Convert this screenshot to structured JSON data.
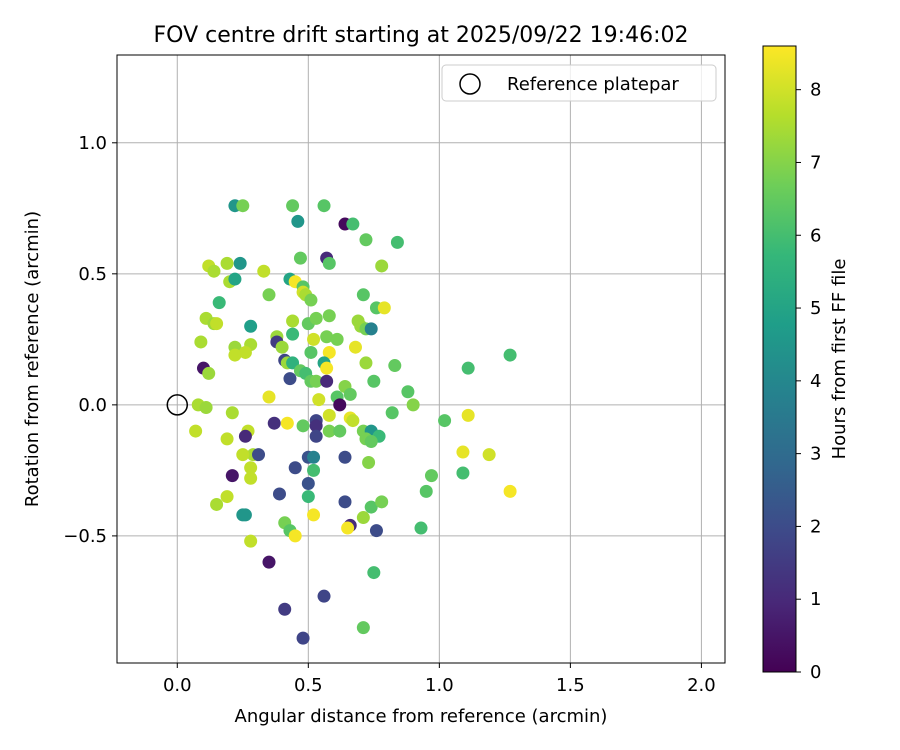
{
  "chart_data": {
    "type": "scatter",
    "title": "FOV centre drift starting at 2025/09/22 19:46:02",
    "xlabel": "Angular distance from reference (arcmin)",
    "ylabel": "Rotation from reference (arcmin)",
    "xlim": [
      -0.23,
      2.09
    ],
    "ylim": [
      -0.985,
      1.335
    ],
    "xticks": [
      0.0,
      0.5,
      1.0,
      1.5,
      2.0
    ],
    "xtick_labels": [
      "0.0",
      "0.5",
      "1.0",
      "1.5",
      "2.0"
    ],
    "yticks": [
      -0.5,
      0.0,
      0.5,
      1.0
    ],
    "ytick_labels": [
      "−0.5",
      "0.0",
      "0.5",
      "1.0"
    ],
    "grid": true,
    "legend": {
      "position": "upper-right",
      "label": "Reference platepar"
    },
    "reference_point": {
      "x": 0.0,
      "y": 0.0
    },
    "colorbar": {
      "label": "Hours from first FF file",
      "min": 0,
      "max": 8.6,
      "colormap": "viridis",
      "ticks": [
        0,
        1,
        2,
        3,
        4,
        5,
        6,
        7,
        8
      ],
      "tick_labels": [
        "0",
        "1",
        "2",
        "3",
        "4",
        "5",
        "6",
        "7",
        "8"
      ]
    },
    "points": [
      {
        "x": 0.22,
        "y": 0.76,
        "h": 4.5
      },
      {
        "x": 0.25,
        "y": 0.76,
        "h": 6.8
      },
      {
        "x": 0.44,
        "y": 0.76,
        "h": 6.5
      },
      {
        "x": 0.56,
        "y": 0.76,
        "h": 6.3
      },
      {
        "x": 0.64,
        "y": 0.69,
        "h": 0.2
      },
      {
        "x": 0.67,
        "y": 0.69,
        "h": 6.0
      },
      {
        "x": 0.46,
        "y": 0.7,
        "h": 4.5
      },
      {
        "x": 0.72,
        "y": 0.63,
        "h": 6.5
      },
      {
        "x": 0.84,
        "y": 0.62,
        "h": 6.0
      },
      {
        "x": 0.57,
        "y": 0.56,
        "h": 1.0
      },
      {
        "x": 0.58,
        "y": 0.54,
        "h": 6.3
      },
      {
        "x": 0.47,
        "y": 0.56,
        "h": 6.5
      },
      {
        "x": 0.78,
        "y": 0.53,
        "h": 7.3
      },
      {
        "x": 0.12,
        "y": 0.53,
        "h": 7.8
      },
      {
        "x": 0.14,
        "y": 0.51,
        "h": 7.5
      },
      {
        "x": 0.19,
        "y": 0.54,
        "h": 7.5
      },
      {
        "x": 0.24,
        "y": 0.54,
        "h": 4.5
      },
      {
        "x": 0.33,
        "y": 0.51,
        "h": 7.8
      },
      {
        "x": 0.2,
        "y": 0.47,
        "h": 7.5
      },
      {
        "x": 0.22,
        "y": 0.48,
        "h": 5.0
      },
      {
        "x": 0.43,
        "y": 0.48,
        "h": 5.0
      },
      {
        "x": 0.45,
        "y": 0.47,
        "h": 8.5
      },
      {
        "x": 0.48,
        "y": 0.45,
        "h": 6.3
      },
      {
        "x": 0.48,
        "y": 0.43,
        "h": 8.0
      },
      {
        "x": 0.49,
        "y": 0.42,
        "h": 7.5
      },
      {
        "x": 0.71,
        "y": 0.42,
        "h": 6.3
      },
      {
        "x": 0.35,
        "y": 0.42,
        "h": 6.8
      },
      {
        "x": 0.51,
        "y": 0.4,
        "h": 6.8
      },
      {
        "x": 0.16,
        "y": 0.39,
        "h": 5.8
      },
      {
        "x": 0.76,
        "y": 0.37,
        "h": 6.3
      },
      {
        "x": 0.79,
        "y": 0.37,
        "h": 8.3
      },
      {
        "x": 0.11,
        "y": 0.33,
        "h": 7.5
      },
      {
        "x": 0.14,
        "y": 0.31,
        "h": 7.3
      },
      {
        "x": 0.15,
        "y": 0.31,
        "h": 7.8
      },
      {
        "x": 0.28,
        "y": 0.3,
        "h": 4.8
      },
      {
        "x": 0.44,
        "y": 0.32,
        "h": 7.5
      },
      {
        "x": 0.5,
        "y": 0.31,
        "h": 6.5
      },
      {
        "x": 0.53,
        "y": 0.33,
        "h": 6.8
      },
      {
        "x": 0.58,
        "y": 0.34,
        "h": 6.8
      },
      {
        "x": 0.69,
        "y": 0.32,
        "h": 7.3
      },
      {
        "x": 0.7,
        "y": 0.3,
        "h": 7.3
      },
      {
        "x": 0.72,
        "y": 0.29,
        "h": 6.8
      },
      {
        "x": 0.74,
        "y": 0.29,
        "h": 3.8
      },
      {
        "x": 0.44,
        "y": 0.27,
        "h": 5.8
      },
      {
        "x": 0.38,
        "y": 0.26,
        "h": 7.3
      },
      {
        "x": 0.57,
        "y": 0.26,
        "h": 6.8
      },
      {
        "x": 0.61,
        "y": 0.25,
        "h": 6.8
      },
      {
        "x": 0.52,
        "y": 0.25,
        "h": 8.0
      },
      {
        "x": 0.09,
        "y": 0.24,
        "h": 7.5
      },
      {
        "x": 0.28,
        "y": 0.23,
        "h": 7.5
      },
      {
        "x": 0.38,
        "y": 0.24,
        "h": 1.5
      },
      {
        "x": 0.4,
        "y": 0.22,
        "h": 7.3
      },
      {
        "x": 0.22,
        "y": 0.22,
        "h": 7.3
      },
      {
        "x": 0.68,
        "y": 0.22,
        "h": 8.3
      },
      {
        "x": 0.26,
        "y": 0.2,
        "h": 7.8
      },
      {
        "x": 0.22,
        "y": 0.19,
        "h": 7.8
      },
      {
        "x": 0.51,
        "y": 0.2,
        "h": 6.3
      },
      {
        "x": 0.58,
        "y": 0.2,
        "h": 8.5
      },
      {
        "x": 1.27,
        "y": 0.19,
        "h": 6.0
      },
      {
        "x": 0.41,
        "y": 0.17,
        "h": 1.8
      },
      {
        "x": 0.42,
        "y": 0.16,
        "h": 7.3
      },
      {
        "x": 0.44,
        "y": 0.16,
        "h": 5.5
      },
      {
        "x": 0.56,
        "y": 0.16,
        "h": 5.0
      },
      {
        "x": 0.57,
        "y": 0.14,
        "h": 8.5
      },
      {
        "x": 0.72,
        "y": 0.16,
        "h": 7.3
      },
      {
        "x": 0.83,
        "y": 0.15,
        "h": 6.5
      },
      {
        "x": 1.11,
        "y": 0.14,
        "h": 6.0
      },
      {
        "x": 0.1,
        "y": 0.14,
        "h": 0.5
      },
      {
        "x": 0.12,
        "y": 0.12,
        "h": 7.3
      },
      {
        "x": 0.47,
        "y": 0.13,
        "h": 6.5
      },
      {
        "x": 0.49,
        "y": 0.12,
        "h": 6.0
      },
      {
        "x": 0.43,
        "y": 0.1,
        "h": 2.0
      },
      {
        "x": 0.51,
        "y": 0.09,
        "h": 6.5
      },
      {
        "x": 0.53,
        "y": 0.09,
        "h": 6.8
      },
      {
        "x": 0.57,
        "y": 0.09,
        "h": 1.0
      },
      {
        "x": 0.75,
        "y": 0.09,
        "h": 6.3
      },
      {
        "x": 0.64,
        "y": 0.07,
        "h": 7.0
      },
      {
        "x": 0.66,
        "y": 0.04,
        "h": 6.5
      },
      {
        "x": 0.88,
        "y": 0.05,
        "h": 6.3
      },
      {
        "x": 0.61,
        "y": 0.03,
        "h": 6.3
      },
      {
        "x": 0.35,
        "y": 0.03,
        "h": 8.3
      },
      {
        "x": 0.54,
        "y": 0.02,
        "h": 8.0
      },
      {
        "x": 0.62,
        "y": 0.0,
        "h": 0.2
      },
      {
        "x": 0.9,
        "y": 0.0,
        "h": 7.0
      },
      {
        "x": 0.08,
        "y": 0.0,
        "h": 7.5
      },
      {
        "x": 0.11,
        "y": -0.01,
        "h": 7.3
      },
      {
        "x": 0.21,
        "y": -0.03,
        "h": 7.5
      },
      {
        "x": 0.82,
        "y": -0.03,
        "h": 6.3
      },
      {
        "x": 0.58,
        "y": -0.04,
        "h": 8.0
      },
      {
        "x": 0.66,
        "y": -0.05,
        "h": 8.3
      },
      {
        "x": 0.67,
        "y": -0.06,
        "h": 7.8
      },
      {
        "x": 1.02,
        "y": -0.06,
        "h": 6.3
      },
      {
        "x": 1.11,
        "y": -0.04,
        "h": 8.3
      },
      {
        "x": 0.37,
        "y": -0.07,
        "h": 1.2
      },
      {
        "x": 0.42,
        "y": -0.07,
        "h": 8.5
      },
      {
        "x": 0.48,
        "y": -0.08,
        "h": 6.5
      },
      {
        "x": 0.53,
        "y": -0.06,
        "h": 1.8
      },
      {
        "x": 0.53,
        "y": -0.08,
        "h": 1.2
      },
      {
        "x": 0.58,
        "y": -0.1,
        "h": 6.8
      },
      {
        "x": 0.62,
        "y": -0.1,
        "h": 6.5
      },
      {
        "x": 0.71,
        "y": -0.1,
        "h": 6.8
      },
      {
        "x": 0.74,
        "y": -0.1,
        "h": 4.5
      },
      {
        "x": 0.07,
        "y": -0.1,
        "h": 7.8
      },
      {
        "x": 0.27,
        "y": -0.1,
        "h": 7.8
      },
      {
        "x": 0.53,
        "y": -0.12,
        "h": 1.8
      },
      {
        "x": 0.77,
        "y": -0.12,
        "h": 5.8
      },
      {
        "x": 0.26,
        "y": -0.12,
        "h": 1.0
      },
      {
        "x": 0.19,
        "y": -0.13,
        "h": 7.8
      },
      {
        "x": 0.72,
        "y": -0.13,
        "h": 6.8
      },
      {
        "x": 0.74,
        "y": -0.14,
        "h": 6.5
      },
      {
        "x": 0.29,
        "y": -0.19,
        "h": 7.5
      },
      {
        "x": 0.31,
        "y": -0.19,
        "h": 2.0
      },
      {
        "x": 0.25,
        "y": -0.19,
        "h": 7.8
      },
      {
        "x": 0.5,
        "y": -0.2,
        "h": 2.2
      },
      {
        "x": 0.52,
        "y": -0.2,
        "h": 3.8
      },
      {
        "x": 0.64,
        "y": -0.2,
        "h": 2.0
      },
      {
        "x": 1.09,
        "y": -0.18,
        "h": 8.3
      },
      {
        "x": 1.19,
        "y": -0.19,
        "h": 8.0
      },
      {
        "x": 0.45,
        "y": -0.24,
        "h": 2.0
      },
      {
        "x": 0.52,
        "y": -0.25,
        "h": 6.0
      },
      {
        "x": 0.28,
        "y": -0.24,
        "h": 7.8
      },
      {
        "x": 0.73,
        "y": -0.22,
        "h": 7.0
      },
      {
        "x": 0.21,
        "y": -0.27,
        "h": 0.5
      },
      {
        "x": 0.28,
        "y": -0.28,
        "h": 7.8
      },
      {
        "x": 0.97,
        "y": -0.27,
        "h": 6.5
      },
      {
        "x": 1.09,
        "y": -0.26,
        "h": 6.0
      },
      {
        "x": 0.5,
        "y": -0.3,
        "h": 2.2
      },
      {
        "x": 0.39,
        "y": -0.34,
        "h": 2.0
      },
      {
        "x": 0.5,
        "y": -0.35,
        "h": 5.8
      },
      {
        "x": 0.95,
        "y": -0.33,
        "h": 6.3
      },
      {
        "x": 1.27,
        "y": -0.33,
        "h": 8.5
      },
      {
        "x": 0.19,
        "y": -0.35,
        "h": 7.8
      },
      {
        "x": 0.15,
        "y": -0.38,
        "h": 7.5
      },
      {
        "x": 0.64,
        "y": -0.37,
        "h": 2.0
      },
      {
        "x": 0.74,
        "y": -0.39,
        "h": 6.3
      },
      {
        "x": 0.78,
        "y": -0.37,
        "h": 6.8
      },
      {
        "x": 0.52,
        "y": -0.42,
        "h": 8.5
      },
      {
        "x": 0.25,
        "y": -0.42,
        "h": 4.5
      },
      {
        "x": 0.26,
        "y": -0.42,
        "h": 4.5
      },
      {
        "x": 0.41,
        "y": -0.45,
        "h": 6.8
      },
      {
        "x": 0.71,
        "y": -0.43,
        "h": 7.3
      },
      {
        "x": 0.66,
        "y": -0.46,
        "h": 1.0
      },
      {
        "x": 0.65,
        "y": -0.47,
        "h": 8.5
      },
      {
        "x": 0.76,
        "y": -0.48,
        "h": 2.0
      },
      {
        "x": 0.93,
        "y": -0.47,
        "h": 6.0
      },
      {
        "x": 0.43,
        "y": -0.48,
        "h": 6.3
      },
      {
        "x": 0.45,
        "y": -0.5,
        "h": 8.5
      },
      {
        "x": 0.28,
        "y": -0.52,
        "h": 7.8
      },
      {
        "x": 0.35,
        "y": -0.6,
        "h": 0.5
      },
      {
        "x": 0.75,
        "y": -0.64,
        "h": 6.0
      },
      {
        "x": 0.56,
        "y": -0.73,
        "h": 1.8
      },
      {
        "x": 0.41,
        "y": -0.78,
        "h": 1.5
      },
      {
        "x": 0.71,
        "y": -0.85,
        "h": 6.5
      },
      {
        "x": 0.48,
        "y": -0.89,
        "h": 1.8
      }
    ]
  }
}
